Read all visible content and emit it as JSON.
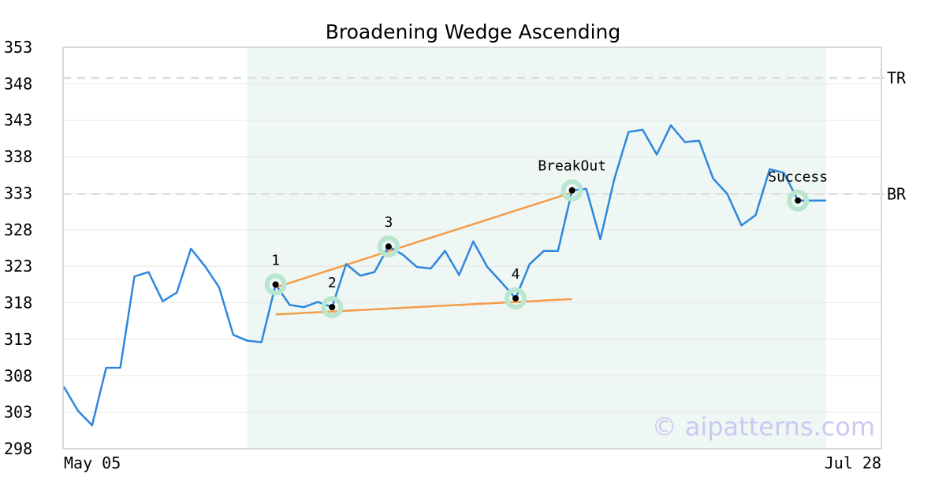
{
  "chart_data": {
    "type": "line",
    "title": "Broadening Wedge Ascending",
    "xlabel": "",
    "ylabel": "",
    "ylim": [
      298,
      353
    ],
    "yticks": [
      298,
      303,
      308,
      313,
      318,
      323,
      328,
      333,
      338,
      343,
      348,
      353
    ],
    "xticks": [
      {
        "index": 0,
        "label": "May 05"
      },
      {
        "index": 58,
        "label": "Jul 28"
      }
    ],
    "grid": true,
    "legend": "none",
    "colors": {
      "price": "#2e86de",
      "trendline": "#f39c4a",
      "pattern_zone": "#eef7f3",
      "marker_halo": "#b8e6cf",
      "level_line": "#dddddd"
    },
    "series": [
      {
        "values": [
          306.5,
          303.2,
          301.2,
          309.1,
          309.1,
          321.6,
          322.2,
          318.2,
          319.4,
          325.4,
          323.0,
          320.1,
          313.6,
          312.8,
          312.6,
          320.5,
          317.7,
          317.4,
          318.1,
          317.4,
          323.3,
          321.7,
          322.2,
          325.7,
          324.6,
          322.9,
          322.7,
          325.1,
          321.8,
          326.4,
          322.9,
          320.8,
          318.6,
          323.3,
          325.1,
          325.1,
          333.4,
          333.6,
          326.7,
          335.0,
          341.4,
          341.7,
          338.3,
          342.3,
          340.0,
          340.2,
          335.0,
          332.9,
          328.6,
          330.0,
          336.3,
          335.8,
          332.0,
          332.0,
          332.0
        ],
        "x_index": [
          0,
          1,
          2,
          3,
          4,
          5,
          6,
          7,
          8,
          9,
          10,
          11,
          12,
          13,
          14,
          15,
          16,
          17,
          18,
          19,
          20,
          21,
          22,
          23,
          24,
          25,
          26,
          27,
          28,
          29,
          30,
          31,
          32,
          33,
          34,
          35,
          36,
          37,
          38,
          39,
          40,
          41,
          42,
          43,
          44,
          45,
          46,
          47,
          48,
          49,
          50,
          51,
          52,
          53,
          54
        ]
      }
    ],
    "pattern_zone": {
      "start_index": 13,
      "end_index": 54
    },
    "levels": [
      {
        "label": "TR",
        "value": 348.8
      },
      {
        "label": "BR",
        "value": 332.9
      }
    ],
    "trendlines": [
      {
        "x": [
          15,
          36
        ],
        "y": [
          320.1,
          333.1
        ]
      },
      {
        "x": [
          15,
          36
        ],
        "y": [
          316.4,
          318.5
        ]
      }
    ],
    "points": [
      {
        "label": "1",
        "index": 15,
        "value": 320.5
      },
      {
        "label": "2",
        "index": 19,
        "value": 317.4
      },
      {
        "label": "3",
        "index": 23,
        "value": 325.7
      },
      {
        "label": "4",
        "index": 32,
        "value": 318.6
      },
      {
        "label": "BreakOut",
        "index": 36,
        "value": 333.4
      },
      {
        "label": "Success",
        "index": 52,
        "value": 332.0
      }
    ],
    "watermark": "© aipatterns.com"
  }
}
